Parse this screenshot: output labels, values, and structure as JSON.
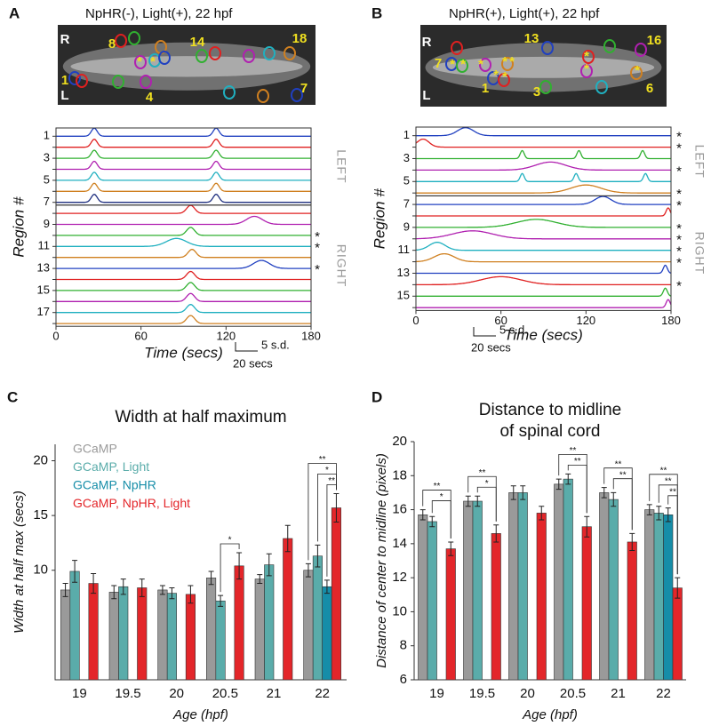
{
  "chart_data": [
    {
      "type": "trace",
      "panel": "A",
      "image_title": "NpHR(-), Light(+), 22 hpf",
      "image_labels": [
        "R",
        "L",
        "8",
        "14",
        "18",
        "1",
        "4",
        "7",
        "*",
        "*"
      ],
      "ylabel": "Region #",
      "xlabel": "Time (secs)",
      "xlim": [
        0,
        180
      ],
      "xticks": [
        0,
        60,
        120,
        180
      ],
      "scale_bar": [
        "5 s.d.",
        "20 secs"
      ],
      "groups": [
        {
          "label": "LEFT",
          "series": [
            {
              "label": "1",
              "color": "#2040c0",
              "peaks": [
                {
                  "t": 27,
                  "w": 3
                },
                {
                  "t": 113,
                  "w": 3
                }
              ]
            },
            {
              "label": null,
              "color": "#e02020",
              "peaks": [
                {
                  "t": 27,
                  "w": 3
                },
                {
                  "t": 113,
                  "w": 3
                }
              ]
            },
            {
              "label": "3",
              "color": "#30b030",
              "peaks": [
                {
                  "t": 27,
                  "w": 3
                },
                {
                  "t": 113,
                  "w": 3
                }
              ]
            },
            {
              "label": null,
              "color": "#b020b0",
              "peaks": [
                {
                  "t": 27,
                  "w": 3
                },
                {
                  "t": 113,
                  "w": 3
                }
              ]
            },
            {
              "label": "5",
              "color": "#20b0c0",
              "peaks": [
                {
                  "t": 27,
                  "w": 3
                },
                {
                  "t": 113,
                  "w": 3
                }
              ]
            },
            {
              "label": null,
              "color": "#d08020",
              "peaks": [
                {
                  "t": 27,
                  "w": 3
                },
                {
                  "t": 113,
                  "w": 3
                }
              ]
            },
            {
              "label": "7",
              "color": "#203080",
              "peaks": [
                {
                  "t": 27,
                  "w": 3
                },
                {
                  "t": 113,
                  "w": 3
                }
              ]
            }
          ]
        },
        {
          "label": "RIGHT",
          "series": [
            {
              "label": null,
              "color": "#e02020",
              "peaks": [
                {
                  "t": 95,
                  "w": 4
                }
              ]
            },
            {
              "label": "9",
              "color": "#b020b0",
              "peaks": [
                {
                  "t": 140,
                  "w": 8
                }
              ]
            },
            {
              "label": null,
              "color": "#30b030",
              "peaks": [
                {
                  "t": 95,
                  "w": 4
                }
              ],
              "star": "*"
            },
            {
              "label": "11",
              "color": "#20b0c0",
              "peaks": [
                {
                  "t": 85,
                  "w": 10
                }
              ],
              "star": "*"
            },
            {
              "label": null,
              "color": "#d08020",
              "peaks": [
                {
                  "t": 96,
                  "w": 4
                }
              ]
            },
            {
              "label": "13",
              "color": "#2040c0",
              "peaks": [
                {
                  "t": 145,
                  "w": 8
                }
              ],
              "star": "*"
            },
            {
              "label": null,
              "color": "#e02020",
              "peaks": [
                {
                  "t": 95,
                  "w": 4
                }
              ]
            },
            {
              "label": "15",
              "color": "#30b030",
              "peaks": [
                {
                  "t": 95,
                  "w": 4
                }
              ]
            },
            {
              "label": null,
              "color": "#b020b0",
              "peaks": [
                {
                  "t": 95,
                  "w": 4
                }
              ]
            },
            {
              "label": "17",
              "color": "#20b0c0",
              "peaks": [
                {
                  "t": 95,
                  "w": 4
                }
              ]
            },
            {
              "label": null,
              "color": "#d08020",
              "peaks": [
                {
                  "t": 95,
                  "w": 4
                }
              ]
            }
          ]
        }
      ]
    },
    {
      "type": "trace",
      "panel": "B",
      "image_title": "NpHR(+), Light(+), 22 hpf",
      "image_labels": [
        "R",
        "L",
        "13",
        "16",
        "7",
        "1",
        "3",
        "6",
        "*",
        "*",
        "*",
        "*",
        "*",
        "*",
        "*",
        "*",
        "*",
        "*"
      ],
      "ylabel": "Region #",
      "xlabel": "Time (secs)",
      "xlim": [
        0,
        180
      ],
      "xticks": [
        0,
        60,
        120,
        180
      ],
      "scale_bar": [
        "5 s.d.",
        "20 secs"
      ],
      "groups": [
        {
          "label": "LEFT",
          "series": [
            {
              "label": "1",
              "color": "#2040c0",
              "peaks": [
                {
                  "t": 35,
                  "w": 8
                }
              ],
              "star": "*"
            },
            {
              "label": null,
              "color": "#e02020",
              "peaks": [
                {
                  "t": 5,
                  "w": 6
                }
              ],
              "star": "*"
            },
            {
              "label": "3",
              "color": "#30b030",
              "peaks": [
                {
                  "t": 75,
                  "w": 2
                },
                {
                  "t": 115,
                  "w": 2
                },
                {
                  "t": 160,
                  "w": 2
                }
              ]
            },
            {
              "label": null,
              "color": "#b020b0",
              "peaks": [
                {
                  "t": 95,
                  "w": 15
                }
              ],
              "star": "*"
            },
            {
              "label": "5",
              "color": "#20b0c0",
              "peaks": [
                {
                  "t": 75,
                  "w": 2
                },
                {
                  "t": 113,
                  "w": 2
                },
                {
                  "t": 162,
                  "w": 2
                }
              ]
            },
            {
              "label": null,
              "color": "#d08020",
              "peaks": [
                {
                  "t": 120,
                  "w": 15
                }
              ],
              "star": "*"
            }
          ]
        },
        {
          "label": "RIGHT",
          "series": [
            {
              "label": "7",
              "color": "#2040c0",
              "peaks": [
                {
                  "t": 132,
                  "w": 8
                }
              ],
              "star": "*"
            },
            {
              "label": null,
              "color": "#e02020",
              "peaks": [
                {
                  "t": 178,
                  "w": 2
                }
              ]
            },
            {
              "label": "9",
              "color": "#30b030",
              "peaks": [
                {
                  "t": 85,
                  "w": 20
                }
              ],
              "star": "*"
            },
            {
              "label": null,
              "color": "#b020b0",
              "peaks": [
                {
                  "t": 40,
                  "w": 20
                }
              ],
              "star": "*"
            },
            {
              "label": "11",
              "color": "#20b0c0",
              "peaks": [
                {
                  "t": 15,
                  "w": 8
                }
              ],
              "star": "*"
            },
            {
              "label": null,
              "color": "#d08020",
              "peaks": [
                {
                  "t": 20,
                  "w": 10
                }
              ],
              "star": "*"
            },
            {
              "label": "13",
              "color": "#2040c0",
              "peaks": [
                {
                  "t": 176,
                  "w": 2
                }
              ]
            },
            {
              "label": null,
              "color": "#e02020",
              "peaks": [
                {
                  "t": 60,
                  "w": 20
                }
              ],
              "star": "*"
            },
            {
              "label": "15",
              "color": "#30b030",
              "peaks": [
                {
                  "t": 176,
                  "w": 2
                }
              ]
            },
            {
              "label": null,
              "color": "#b020b0",
              "peaks": [
                {
                  "t": 178,
                  "w": 2
                }
              ]
            }
          ]
        }
      ]
    },
    {
      "type": "bar",
      "panel": "C",
      "title": "Width at half maximum",
      "ylabel": "Width at half max (secs)",
      "xlabel": "Age (hpf)",
      "categories": [
        "19",
        "19.5",
        "20",
        "20.5",
        "21",
        "22"
      ],
      "ylim": [
        0,
        21.5
      ],
      "yticks": [
        10,
        15,
        20
      ],
      "series": [
        {
          "name": "GCaMP",
          "color": "#9a9a9a",
          "values": [
            8.2,
            8.0,
            8.2,
            9.3,
            9.2,
            10.0
          ],
          "errors": [
            0.6,
            0.6,
            0.4,
            0.6,
            0.4,
            0.6
          ]
        },
        {
          "name": "GCaMP, Light",
          "color": "#5aacaa",
          "values": [
            9.9,
            8.5,
            7.9,
            7.2,
            10.5,
            11.3
          ],
          "errors": [
            1.0,
            0.7,
            0.5,
            0.5,
            1.0,
            1.0
          ]
        },
        {
          "name": "GCaMP, NpHR",
          "color": "#168da8",
          "values": [
            null,
            null,
            null,
            null,
            null,
            8.5
          ],
          "errors": [
            null,
            null,
            null,
            null,
            null,
            0.6
          ]
        },
        {
          "name": "GCaMP, NpHR, Light",
          "color": "#e3262a",
          "values": [
            8.8,
            8.4,
            7.8,
            10.4,
            12.9,
            15.7
          ],
          "errors": [
            0.9,
            0.8,
            0.8,
            1.2,
            1.2,
            1.3
          ]
        }
      ],
      "significance": [
        {
          "category": 3,
          "from": 1,
          "to": 3,
          "label": "*"
        },
        {
          "category": 5,
          "from": 2,
          "to": 3,
          "label": "**"
        },
        {
          "category": 5,
          "from": 1,
          "to": 3,
          "label": "*"
        },
        {
          "category": 5,
          "from": 0,
          "to": 3,
          "label": "**"
        }
      ]
    },
    {
      "type": "bar",
      "panel": "D",
      "title": [
        "Distance to midline",
        "of spinal cord"
      ],
      "ylabel": "Distance of center to midline (pixels)",
      "xlabel": "Age (hpf)",
      "categories": [
        "19",
        "19.5",
        "20",
        "20.5",
        "21",
        "22"
      ],
      "ylim": [
        6,
        20
      ],
      "yticks": [
        6,
        8,
        10,
        12,
        14,
        16,
        18,
        20
      ],
      "series": [
        {
          "color": "#9a9a9a",
          "values": [
            15.7,
            16.5,
            17.0,
            17.5,
            17.0,
            16.0
          ],
          "errors": [
            0.3,
            0.3,
            0.4,
            0.3,
            0.3,
            0.3
          ]
        },
        {
          "color": "#5aacaa",
          "values": [
            15.3,
            16.5,
            17.0,
            17.8,
            16.6,
            15.8
          ],
          "errors": [
            0.3,
            0.3,
            0.4,
            0.3,
            0.4,
            0.4
          ]
        },
        {
          "color": "#168da8",
          "values": [
            null,
            null,
            null,
            null,
            null,
            15.7
          ],
          "errors": [
            null,
            null,
            null,
            null,
            null,
            0.4
          ]
        },
        {
          "color": "#e3262a",
          "values": [
            13.7,
            14.6,
            15.8,
            15.0,
            14.1,
            11.4
          ],
          "errors": [
            0.4,
            0.5,
            0.4,
            0.6,
            0.5,
            0.6
          ]
        }
      ],
      "significance": [
        {
          "category": 0,
          "from": 1,
          "to": 3,
          "label": "*"
        },
        {
          "category": 0,
          "from": 0,
          "to": 3,
          "label": "**"
        },
        {
          "category": 1,
          "from": 1,
          "to": 3,
          "label": "*"
        },
        {
          "category": 1,
          "from": 0,
          "to": 3,
          "label": "**"
        },
        {
          "category": 3,
          "from": 1,
          "to": 3,
          "label": "**"
        },
        {
          "category": 3,
          "from": 0,
          "to": 3,
          "label": "**"
        },
        {
          "category": 4,
          "from": 1,
          "to": 3,
          "label": "**"
        },
        {
          "category": 4,
          "from": 0,
          "to": 3,
          "label": "**"
        },
        {
          "category": 5,
          "from": 2,
          "to": 3,
          "label": "**"
        },
        {
          "category": 5,
          "from": 1,
          "to": 3,
          "label": "**"
        },
        {
          "category": 5,
          "from": 0,
          "to": 3,
          "label": "**"
        }
      ]
    }
  ]
}
